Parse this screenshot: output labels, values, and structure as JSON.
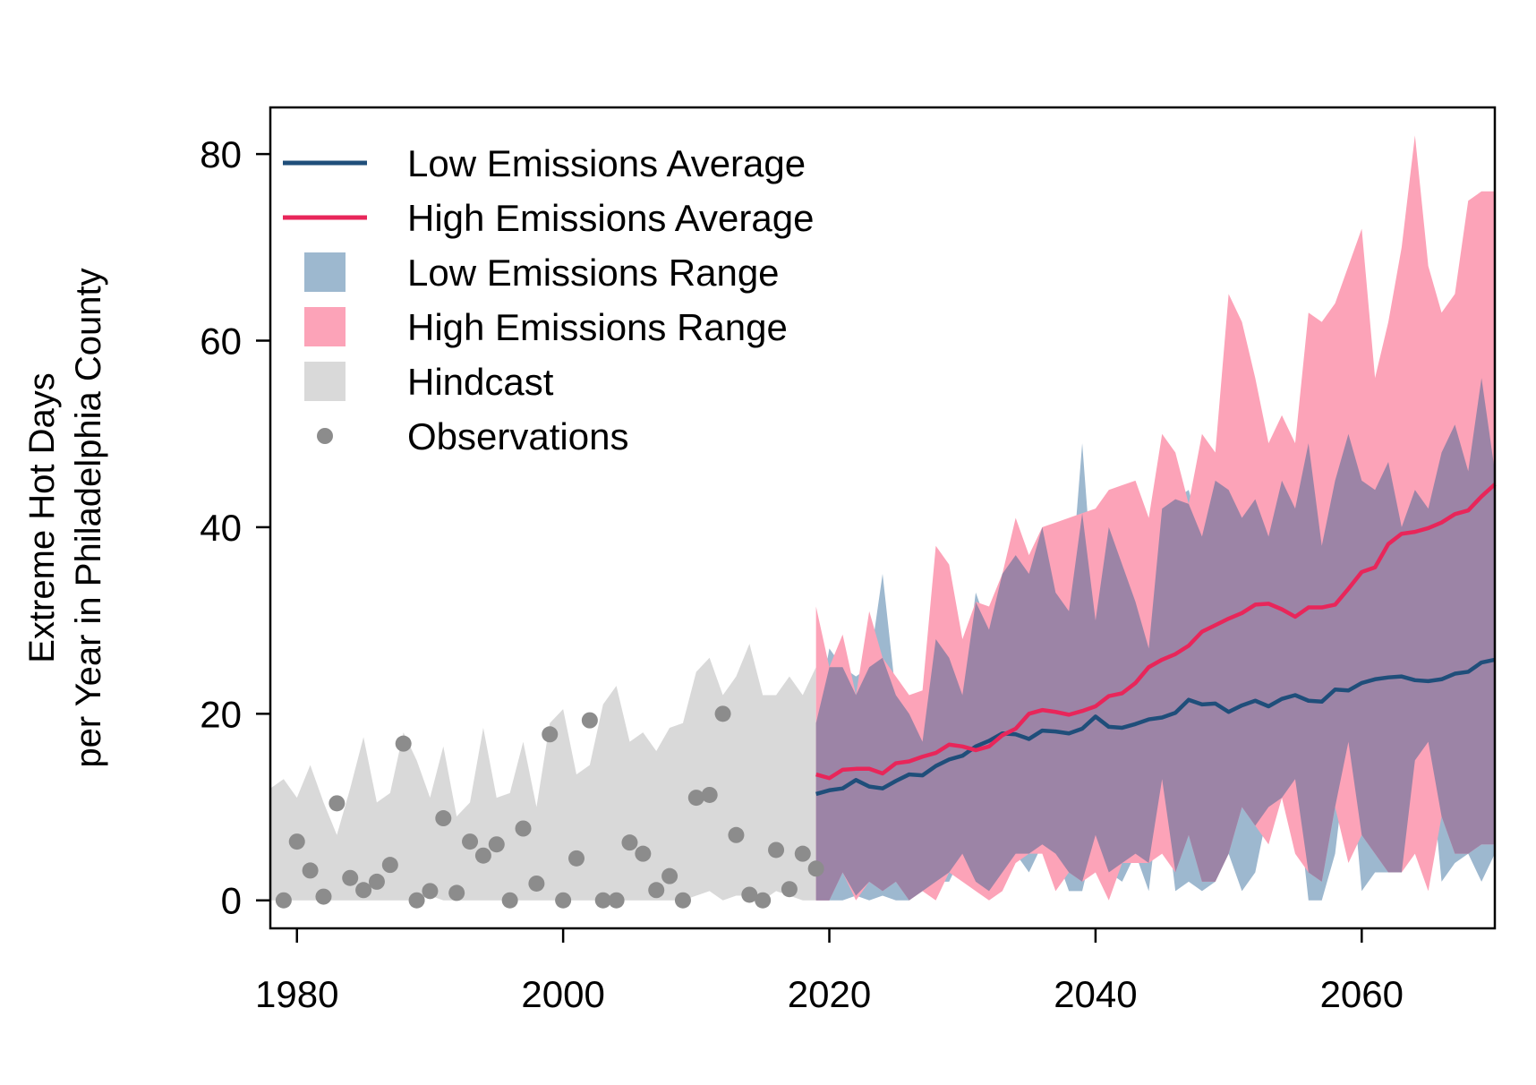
{
  "chart_data": {
    "type": "line",
    "title": "",
    "xlabel": "",
    "ylabel_lines": [
      "Extreme Hot Days",
      "per Year in Philadelphia County"
    ],
    "xlim": [
      1978,
      2070
    ],
    "ylim": [
      -3,
      85
    ],
    "x_ticks": [
      1980,
      2000,
      2020,
      2040,
      2060
    ],
    "y_ticks": [
      0,
      20,
      40,
      60,
      80
    ],
    "legend_position": "top-left",
    "colors": {
      "low_avg": "#1f4e7a",
      "high_avg": "#e8265a",
      "low_range": "#9db8cf",
      "high_range": "#fca3b8",
      "overlap": "#9c84a6",
      "hindcast": "#d9d9d9",
      "observations": "#8c8c8c"
    },
    "legend": [
      {
        "key": "low_avg",
        "label": "Low Emissions Average",
        "symbol": "line"
      },
      {
        "key": "high_avg",
        "label": "High Emissions Average",
        "symbol": "line"
      },
      {
        "key": "low_range",
        "label": "Low Emissions Range",
        "symbol": "box"
      },
      {
        "key": "high_range",
        "label": "High Emissions Range",
        "symbol": "box"
      },
      {
        "key": "hindcast",
        "label": "Hindcast",
        "symbol": "box"
      },
      {
        "key": "observations",
        "label": "Observations",
        "symbol": "point"
      }
    ],
    "hindcast": {
      "x": [
        1978,
        1979,
        1980,
        1981,
        1982,
        1983,
        1984,
        1985,
        1986,
        1987,
        1988,
        1989,
        1990,
        1991,
        1992,
        1993,
        1994,
        1995,
        1996,
        1997,
        1998,
        1999,
        2000,
        2001,
        2002,
        2003,
        2004,
        2005,
        2006,
        2007,
        2008,
        2009,
        2010,
        2011,
        2012,
        2013,
        2014,
        2015,
        2016,
        2017,
        2018,
        2019
      ],
      "lower": [
        0,
        0,
        0,
        0,
        0,
        0,
        0,
        0,
        0,
        0,
        0,
        0,
        0.5,
        0,
        0,
        0,
        0,
        0,
        0,
        0,
        0,
        0,
        0,
        0,
        0,
        0,
        0,
        0,
        0,
        0,
        0,
        0,
        0.5,
        1,
        0,
        0.5,
        0.5,
        0,
        1,
        0.5,
        0,
        0
      ],
      "upper": [
        12,
        13,
        11,
        14.5,
        10.5,
        7,
        12,
        17.5,
        10.5,
        11.5,
        18,
        15,
        11,
        16.5,
        9,
        10.5,
        18.5,
        11,
        11.5,
        17,
        10,
        19,
        20.5,
        13.5,
        14.5,
        21,
        23,
        17,
        18,
        16,
        18.5,
        19,
        24.5,
        26,
        22,
        24,
        27.5,
        22,
        22,
        24,
        22,
        25
      ]
    },
    "observations": {
      "x": [
        1979,
        1980,
        1981,
        1982,
        1983,
        1984,
        1985,
        1986,
        1987,
        1988,
        1989,
        1990,
        1991,
        1992,
        1993,
        1994,
        1995,
        1996,
        1997,
        1998,
        1999,
        2000,
        2001,
        2002,
        2003,
        2004,
        2005,
        2006,
        2007,
        2008,
        2009,
        2010,
        2011,
        2012,
        2013,
        2014,
        2015,
        2016,
        2017,
        2018,
        2019
      ],
      "y": [
        0,
        6.3,
        3.2,
        0.4,
        10.4,
        2.4,
        1.1,
        2,
        3.8,
        16.8,
        0,
        1,
        8.8,
        0.8,
        6.3,
        4.8,
        6,
        0,
        7.7,
        1.8,
        17.8,
        0,
        4.5,
        19.3,
        0,
        0,
        6.2,
        5,
        1.1,
        2.6,
        0,
        11,
        11.3,
        20,
        7,
        0.6,
        0,
        5.4,
        1.2,
        5,
        3.4
      ]
    },
    "future_x": [
      2019,
      2020,
      2021,
      2022,
      2023,
      2024,
      2025,
      2026,
      2027,
      2028,
      2029,
      2030,
      2031,
      2032,
      2033,
      2034,
      2035,
      2036,
      2037,
      2038,
      2039,
      2040,
      2041,
      2042,
      2043,
      2044,
      2045,
      2046,
      2047,
      2048,
      2049,
      2050,
      2051,
      2052,
      2053,
      2054,
      2055,
      2056,
      2057,
      2058,
      2059,
      2060,
      2061,
      2062,
      2063,
      2064,
      2065,
      2066,
      2067,
      2068,
      2069,
      2070
    ],
    "low_emissions": {
      "average": [
        11.4,
        11.8,
        12,
        12.9,
        12.2,
        12,
        12.8,
        13.5,
        13.4,
        14.4,
        15.1,
        15.5,
        16.5,
        17.1,
        17.9,
        17.8,
        17.3,
        18.2,
        18.1,
        17.9,
        18.4,
        19.7,
        18.6,
        18.5,
        18.9,
        19.4,
        19.6,
        20.1,
        21.5,
        21,
        21.1,
        20.2,
        20.9,
        21.4,
        20.8,
        21.6,
        22,
        21.4,
        21.3,
        22.6,
        22.5,
        23.3,
        23.7,
        23.9,
        24,
        23.6,
        23.5,
        23.7,
        24.3,
        24.5,
        25.5,
        25.8
      ],
      "lower": [
        0,
        0,
        0,
        0.5,
        0,
        0.5,
        0,
        0,
        1,
        2,
        2,
        5,
        2,
        1,
        3,
        5,
        3,
        6,
        5,
        1,
        1,
        7,
        3,
        2,
        5,
        1,
        13,
        1,
        2,
        1,
        2,
        5,
        1,
        3,
        10,
        11,
        13,
        0,
        0,
        5,
        17,
        1,
        3,
        3,
        3,
        15,
        17,
        2,
        4,
        5,
        2,
        5
      ],
      "upper": [
        19,
        27,
        25,
        24,
        25,
        35,
        22,
        20,
        17,
        28,
        26,
        22,
        33,
        29,
        35,
        37,
        35,
        40,
        33,
        31,
        49,
        30,
        40,
        36,
        32,
        27,
        42,
        43,
        44,
        39,
        45,
        44,
        41,
        43,
        39,
        45,
        42,
        49,
        38,
        45,
        50,
        45,
        44,
        47,
        40,
        44,
        42,
        48,
        51,
        46,
        56,
        46
      ]
    },
    "high_emissions": {
      "average": [
        13.5,
        13.1,
        14,
        14.1,
        14.1,
        13.6,
        14.7,
        14.9,
        15.4,
        15.8,
        16.7,
        16.5,
        16.1,
        16.5,
        17.7,
        18.4,
        20,
        20.4,
        20.2,
        19.9,
        20.3,
        20.8,
        21.9,
        22.2,
        23.3,
        25,
        25.8,
        26.4,
        27.3,
        28.8,
        29.5,
        30.2,
        30.8,
        31.7,
        31.8,
        31.2,
        30.4,
        31.4,
        31.4,
        31.7,
        33.4,
        35.2,
        35.7,
        38.2,
        39.3,
        39.5,
        39.9,
        40.5,
        41.4,
        41.8,
        43.3,
        44.6
      ],
      "lower": [
        0,
        0,
        3,
        0,
        2,
        1,
        2,
        0,
        1,
        0,
        3,
        2,
        1,
        0,
        1,
        4,
        5,
        5,
        1,
        3,
        2,
        3,
        0,
        4,
        4,
        4,
        5,
        3,
        7,
        2,
        2,
        5,
        10,
        8,
        6,
        11,
        5,
        3,
        2,
        10,
        4,
        7,
        5,
        3,
        3,
        5,
        1,
        9,
        5,
        5,
        6,
        6
      ],
      "upper": [
        31.5,
        25,
        28.5,
        22,
        31,
        26,
        24,
        22,
        22.5,
        38,
        36,
        28,
        32,
        31.5,
        35,
        41,
        37,
        40,
        40.5,
        41,
        41.5,
        42,
        44,
        44.5,
        45,
        41,
        50,
        48,
        42.5,
        50,
        48,
        65,
        62,
        56,
        49,
        52,
        49,
        63,
        62,
        64,
        68,
        72,
        56,
        62,
        70,
        82,
        68,
        63,
        65,
        75,
        76,
        76
      ]
    }
  }
}
